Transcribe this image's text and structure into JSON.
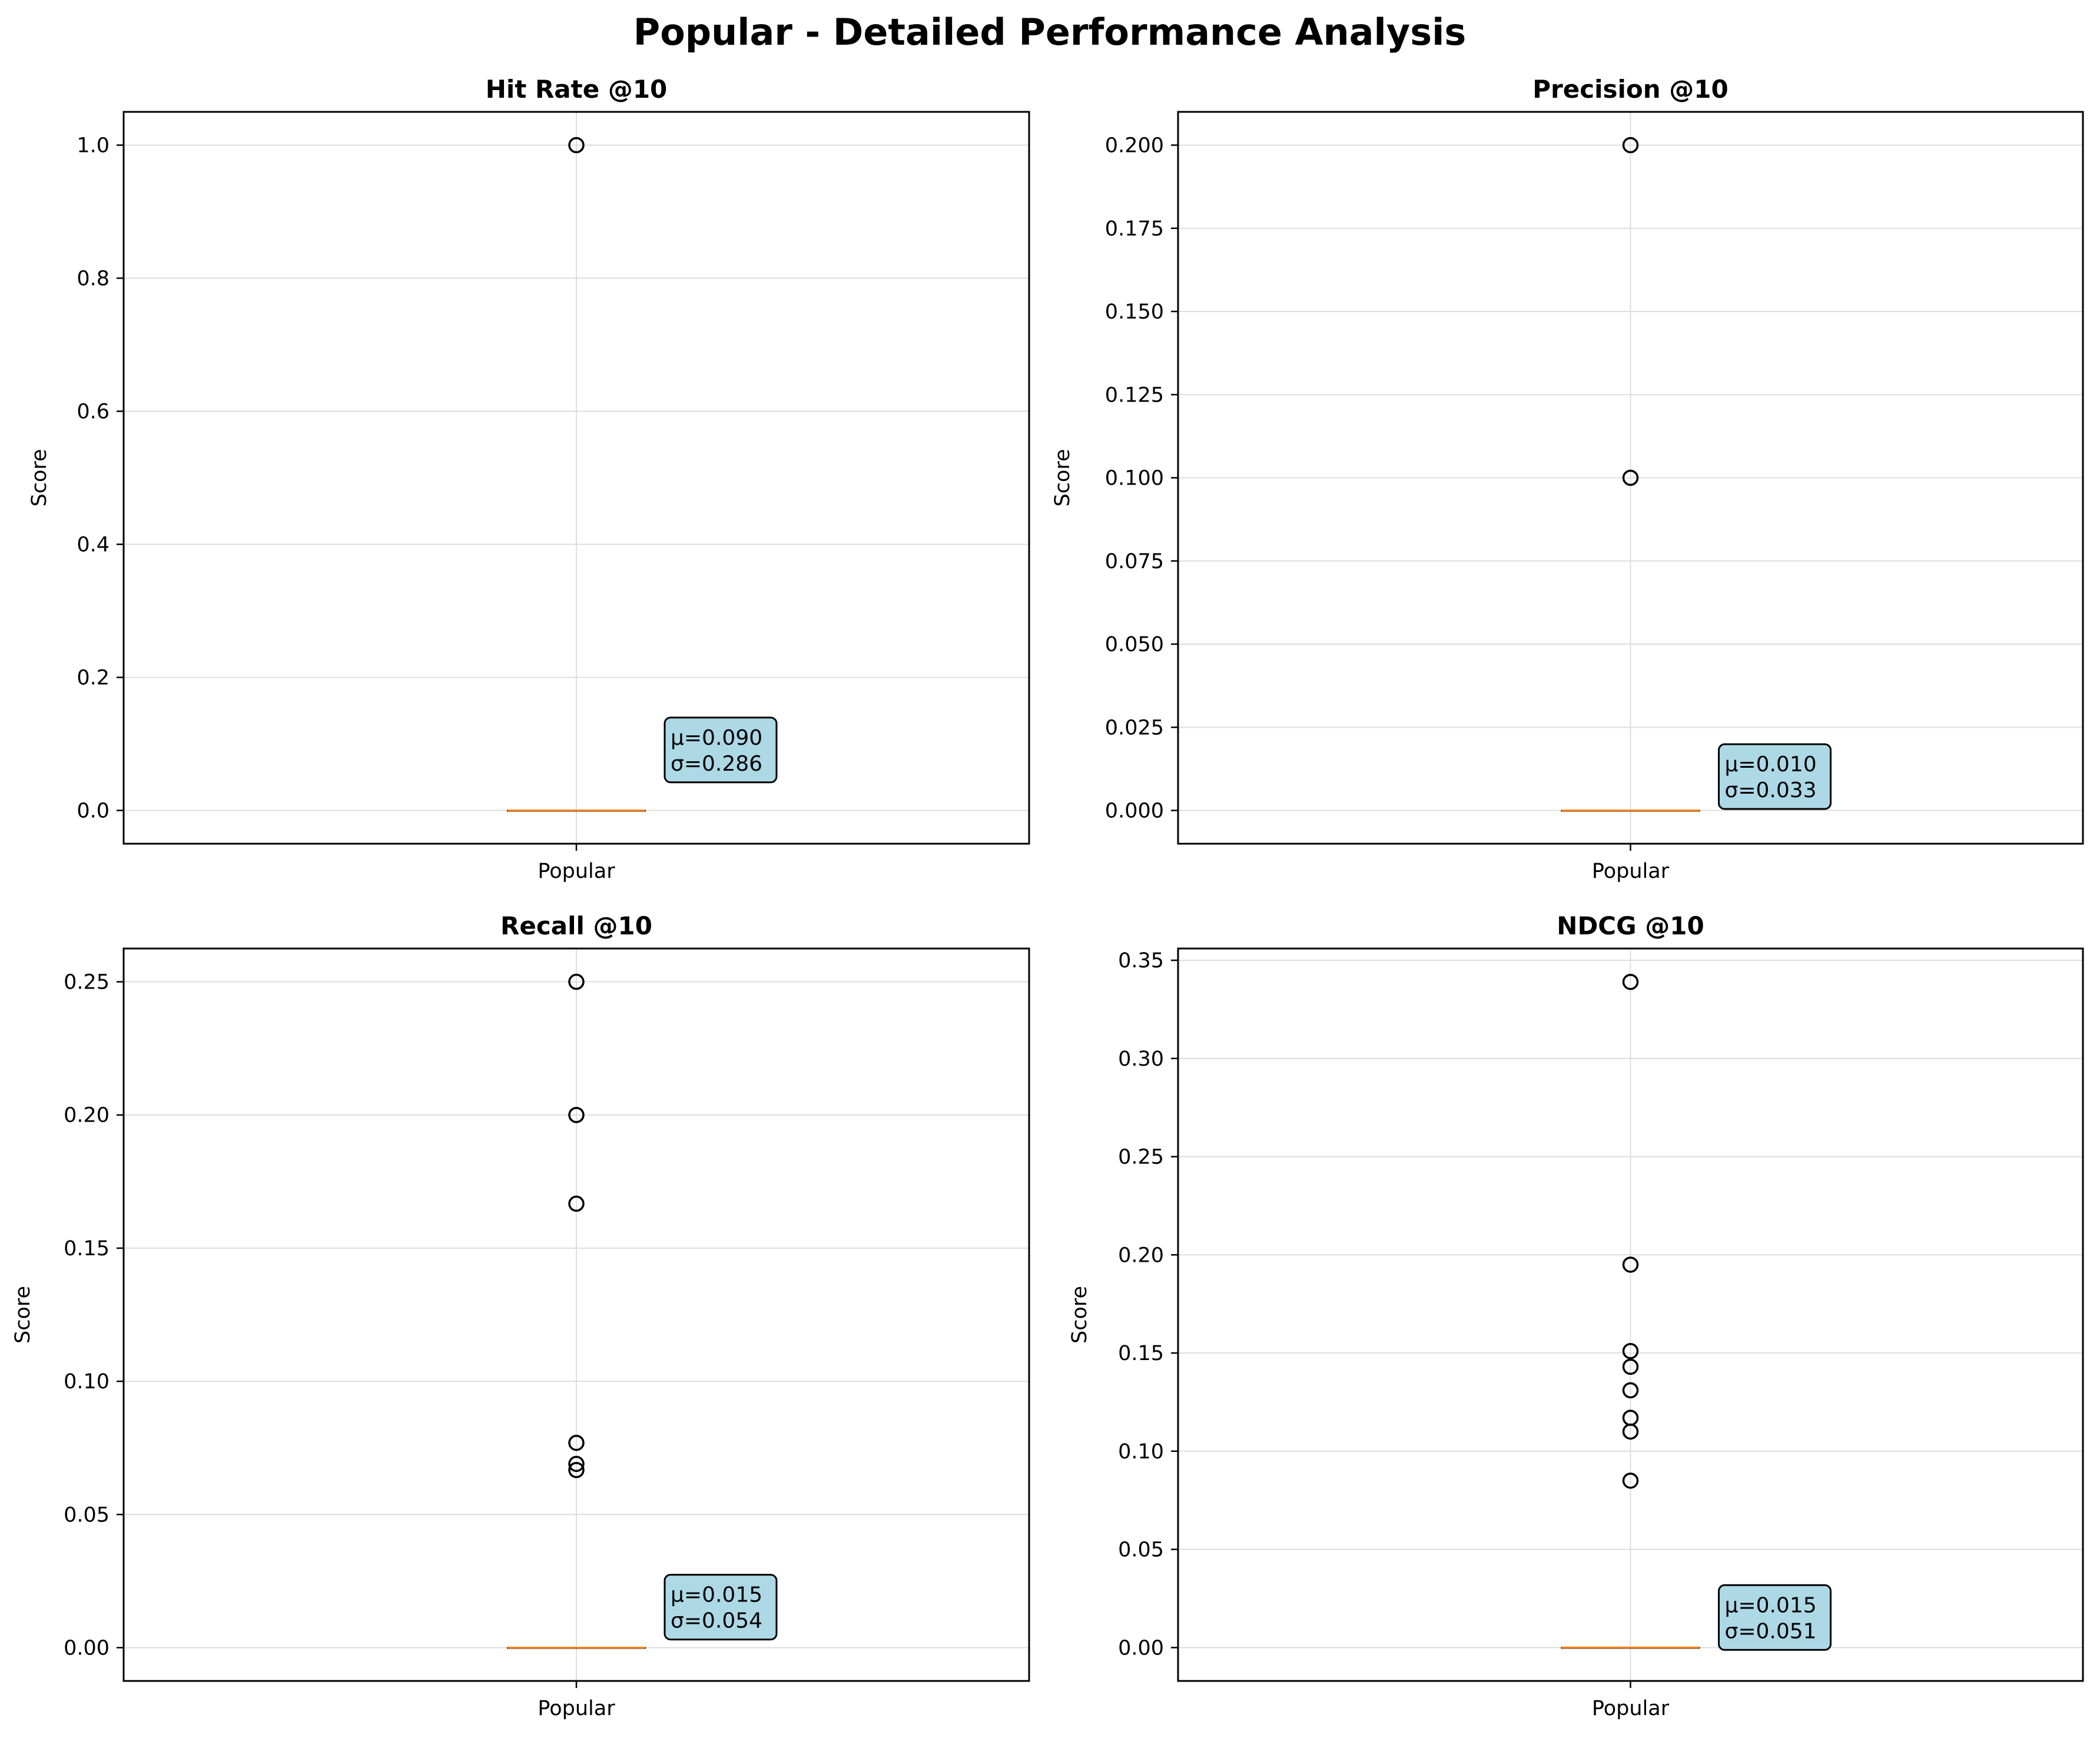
{
  "figure": {
    "title": "Popular - Detailed Performance Analysis"
  },
  "chart_data": [
    {
      "type": "box",
      "title": "Hit Rate @10",
      "xlabel": "",
      "ylabel": "Score",
      "categories": [
        "Popular"
      ],
      "ylim": [
        -0.05,
        1.05
      ],
      "yticks": [
        0.0,
        0.2,
        0.4,
        0.6,
        0.8,
        1.0
      ],
      "ytick_labels": [
        "0.0",
        "0.2",
        "0.4",
        "0.6",
        "0.8",
        "1.0"
      ],
      "grid": true,
      "box": {
        "q1": 0.0,
        "median": 0.0,
        "q3": 0.0,
        "whisker_low": 0.0,
        "whisker_high": 0.0
      },
      "outliers": [
        1.0
      ],
      "annotation": {
        "mean_label": "μ=0.090",
        "std_label": "σ=0.286",
        "mean": 0.09,
        "std": 0.286
      }
    },
    {
      "type": "box",
      "title": "Precision @10",
      "xlabel": "",
      "ylabel": "Score",
      "categories": [
        "Popular"
      ],
      "ylim": [
        -0.01,
        0.21
      ],
      "yticks": [
        0.0,
        0.025,
        0.05,
        0.075,
        0.1,
        0.125,
        0.15,
        0.175,
        0.2
      ],
      "ytick_labels": [
        "0.000",
        "0.025",
        "0.050",
        "0.075",
        "0.100",
        "0.125",
        "0.150",
        "0.175",
        "0.200"
      ],
      "grid": true,
      "box": {
        "q1": 0.0,
        "median": 0.0,
        "q3": 0.0,
        "whisker_low": 0.0,
        "whisker_high": 0.0
      },
      "outliers": [
        0.2,
        0.1
      ],
      "annotation": {
        "mean_label": "μ=0.010",
        "std_label": "σ=0.033",
        "mean": 0.01,
        "std": 0.033
      }
    },
    {
      "type": "box",
      "title": "Recall @10",
      "xlabel": "",
      "ylabel": "Score",
      "categories": [
        "Popular"
      ],
      "ylim": [
        -0.0125,
        0.2625
      ],
      "yticks": [
        0.0,
        0.05,
        0.1,
        0.15,
        0.2,
        0.25
      ],
      "ytick_labels": [
        "0.00",
        "0.05",
        "0.10",
        "0.15",
        "0.20",
        "0.25"
      ],
      "grid": true,
      "box": {
        "q1": 0.0,
        "median": 0.0,
        "q3": 0.0,
        "whisker_low": 0.0,
        "whisker_high": 0.0
      },
      "outliers": [
        0.25,
        0.2,
        0.1667,
        0.0769,
        0.069,
        0.0667
      ],
      "annotation": {
        "mean_label": "μ=0.015",
        "std_label": "σ=0.054",
        "mean": 0.015,
        "std": 0.054
      }
    },
    {
      "type": "box",
      "title": "NDCG @10",
      "xlabel": "",
      "ylabel": "Score",
      "categories": [
        "Popular"
      ],
      "ylim": [
        -0.017,
        0.356
      ],
      "yticks": [
        0.0,
        0.05,
        0.1,
        0.15,
        0.2,
        0.25,
        0.3,
        0.35
      ],
      "ytick_labels": [
        "0.00",
        "0.05",
        "0.10",
        "0.15",
        "0.20",
        "0.25",
        "0.30",
        "0.35"
      ],
      "grid": true,
      "box": {
        "q1": 0.0,
        "median": 0.0,
        "q3": 0.0,
        "whisker_low": 0.0,
        "whisker_high": 0.0
      },
      "outliers": [
        0.339,
        0.195,
        0.151,
        0.143,
        0.131,
        0.117,
        0.11,
        0.085
      ],
      "annotation": {
        "mean_label": "μ=0.015",
        "std_label": "σ=0.051",
        "mean": 0.015,
        "std": 0.051
      }
    }
  ],
  "style": {
    "median_color": "#ff7f0e",
    "annotation_fill": "#add8e6",
    "axis_color": "#000000",
    "grid_color": "#dddddd"
  }
}
